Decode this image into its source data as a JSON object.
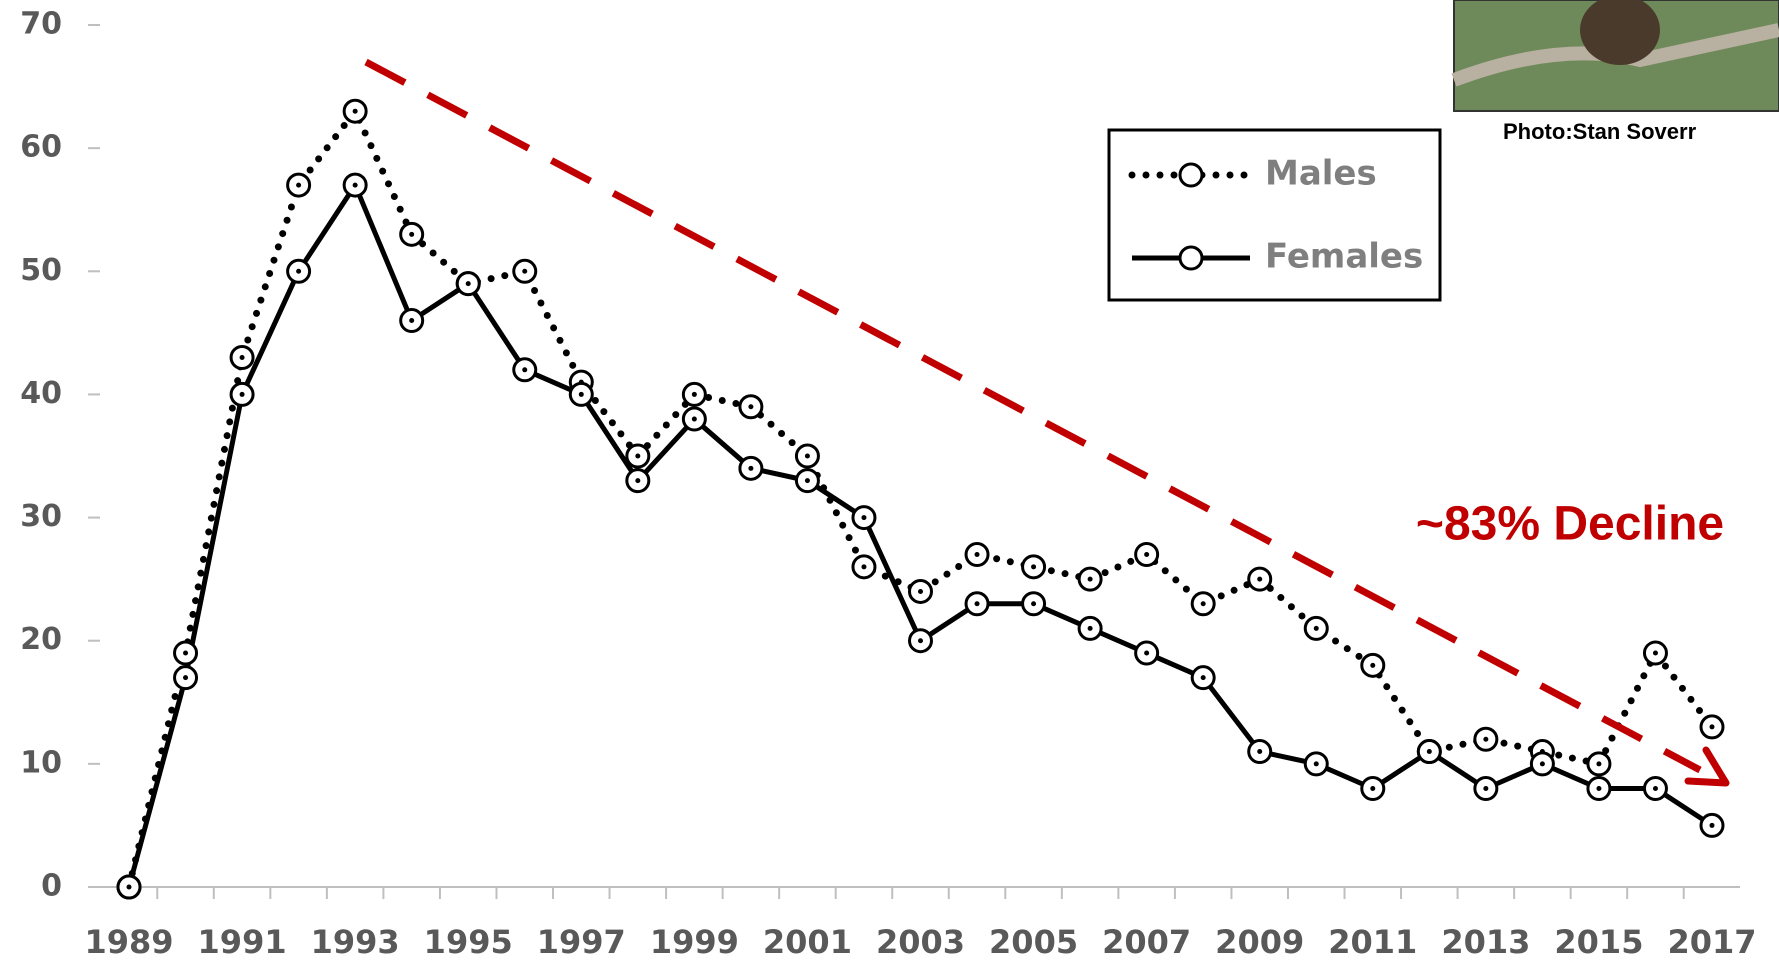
{
  "chart_data": {
    "type": "line",
    "categories": [
      "1989",
      null,
      "1991",
      null,
      "1993",
      null,
      "1995",
      null,
      "1997",
      null,
      "1999",
      null,
      "2001",
      null,
      "2003",
      null,
      "2005",
      null,
      "2007",
      null,
      "2009",
      null,
      "2011",
      null,
      "2013",
      null,
      "2015",
      null,
      "2017"
    ],
    "series": [
      {
        "name": "Males",
        "color": "#000000",
        "line_style": "dotted",
        "values": [
          0,
          19,
          43,
          57,
          63,
          53,
          49,
          50,
          41,
          35,
          40,
          39,
          35,
          26,
          24,
          27,
          26,
          25,
          27,
          23,
          25,
          21,
          18,
          11,
          12,
          11,
          10,
          19,
          13
        ]
      },
      {
        "name": "Females",
        "color": "#000000",
        "line_style": "solid",
        "values": [
          0,
          17,
          40,
          50,
          57,
          46,
          49,
          42,
          40,
          33,
          38,
          34,
          33,
          30,
          20,
          23,
          23,
          21,
          19,
          17,
          11,
          10,
          8,
          11,
          8,
          10,
          8,
          8,
          5
        ]
      }
    ],
    "ylim": [
      0,
      70
    ],
    "yticks": [
      0,
      10,
      20,
      30,
      40,
      50,
      60,
      70
    ],
    "annotation": "~83% Decline",
    "annotation_color": "#c00000",
    "photo_credit": "Photo:Stan Soverr",
    "legend": "upper right"
  }
}
